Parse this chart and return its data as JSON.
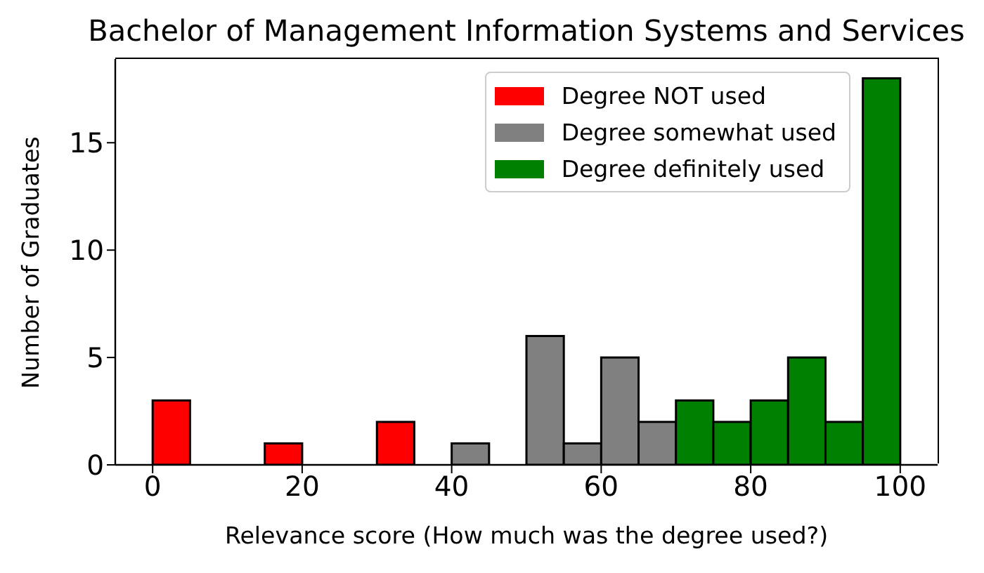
{
  "chart_data": {
    "type": "histogram",
    "title": "Bachelor of Management Information Systems and Services",
    "xlabel": "Relevance score (How much was the degree used?)",
    "ylabel": "Number of Graduates",
    "bins": [
      0,
      5,
      10,
      15,
      20,
      25,
      30,
      35,
      40,
      45,
      50,
      55,
      60,
      65,
      70,
      75,
      80,
      85,
      90,
      95,
      100
    ],
    "series": [
      {
        "name": "Degree NOT used",
        "color": "#ff0000",
        "values": [
          3,
          0,
          0,
          1,
          0,
          0,
          2,
          0,
          null,
          null,
          null,
          null,
          null,
          null,
          null,
          null,
          null,
          null,
          null,
          null
        ]
      },
      {
        "name": "Degree somewhat used",
        "color": "#808080",
        "values": [
          null,
          null,
          null,
          null,
          null,
          null,
          null,
          null,
          1,
          0,
          6,
          1,
          5,
          2,
          null,
          null,
          null,
          null,
          null,
          null
        ]
      },
      {
        "name": "Degree definitely used",
        "color": "#008000",
        "values": [
          null,
          null,
          null,
          null,
          null,
          null,
          null,
          null,
          null,
          null,
          null,
          null,
          null,
          null,
          3,
          2,
          3,
          5,
          2,
          18
        ]
      }
    ],
    "xlim": [
      -5,
      105
    ],
    "xticks": [
      0,
      20,
      40,
      60,
      80,
      100
    ],
    "ylim": [
      0,
      18.9
    ],
    "yticks": [
      0,
      5,
      10,
      15
    ],
    "legend": "top right",
    "grid": false
  }
}
